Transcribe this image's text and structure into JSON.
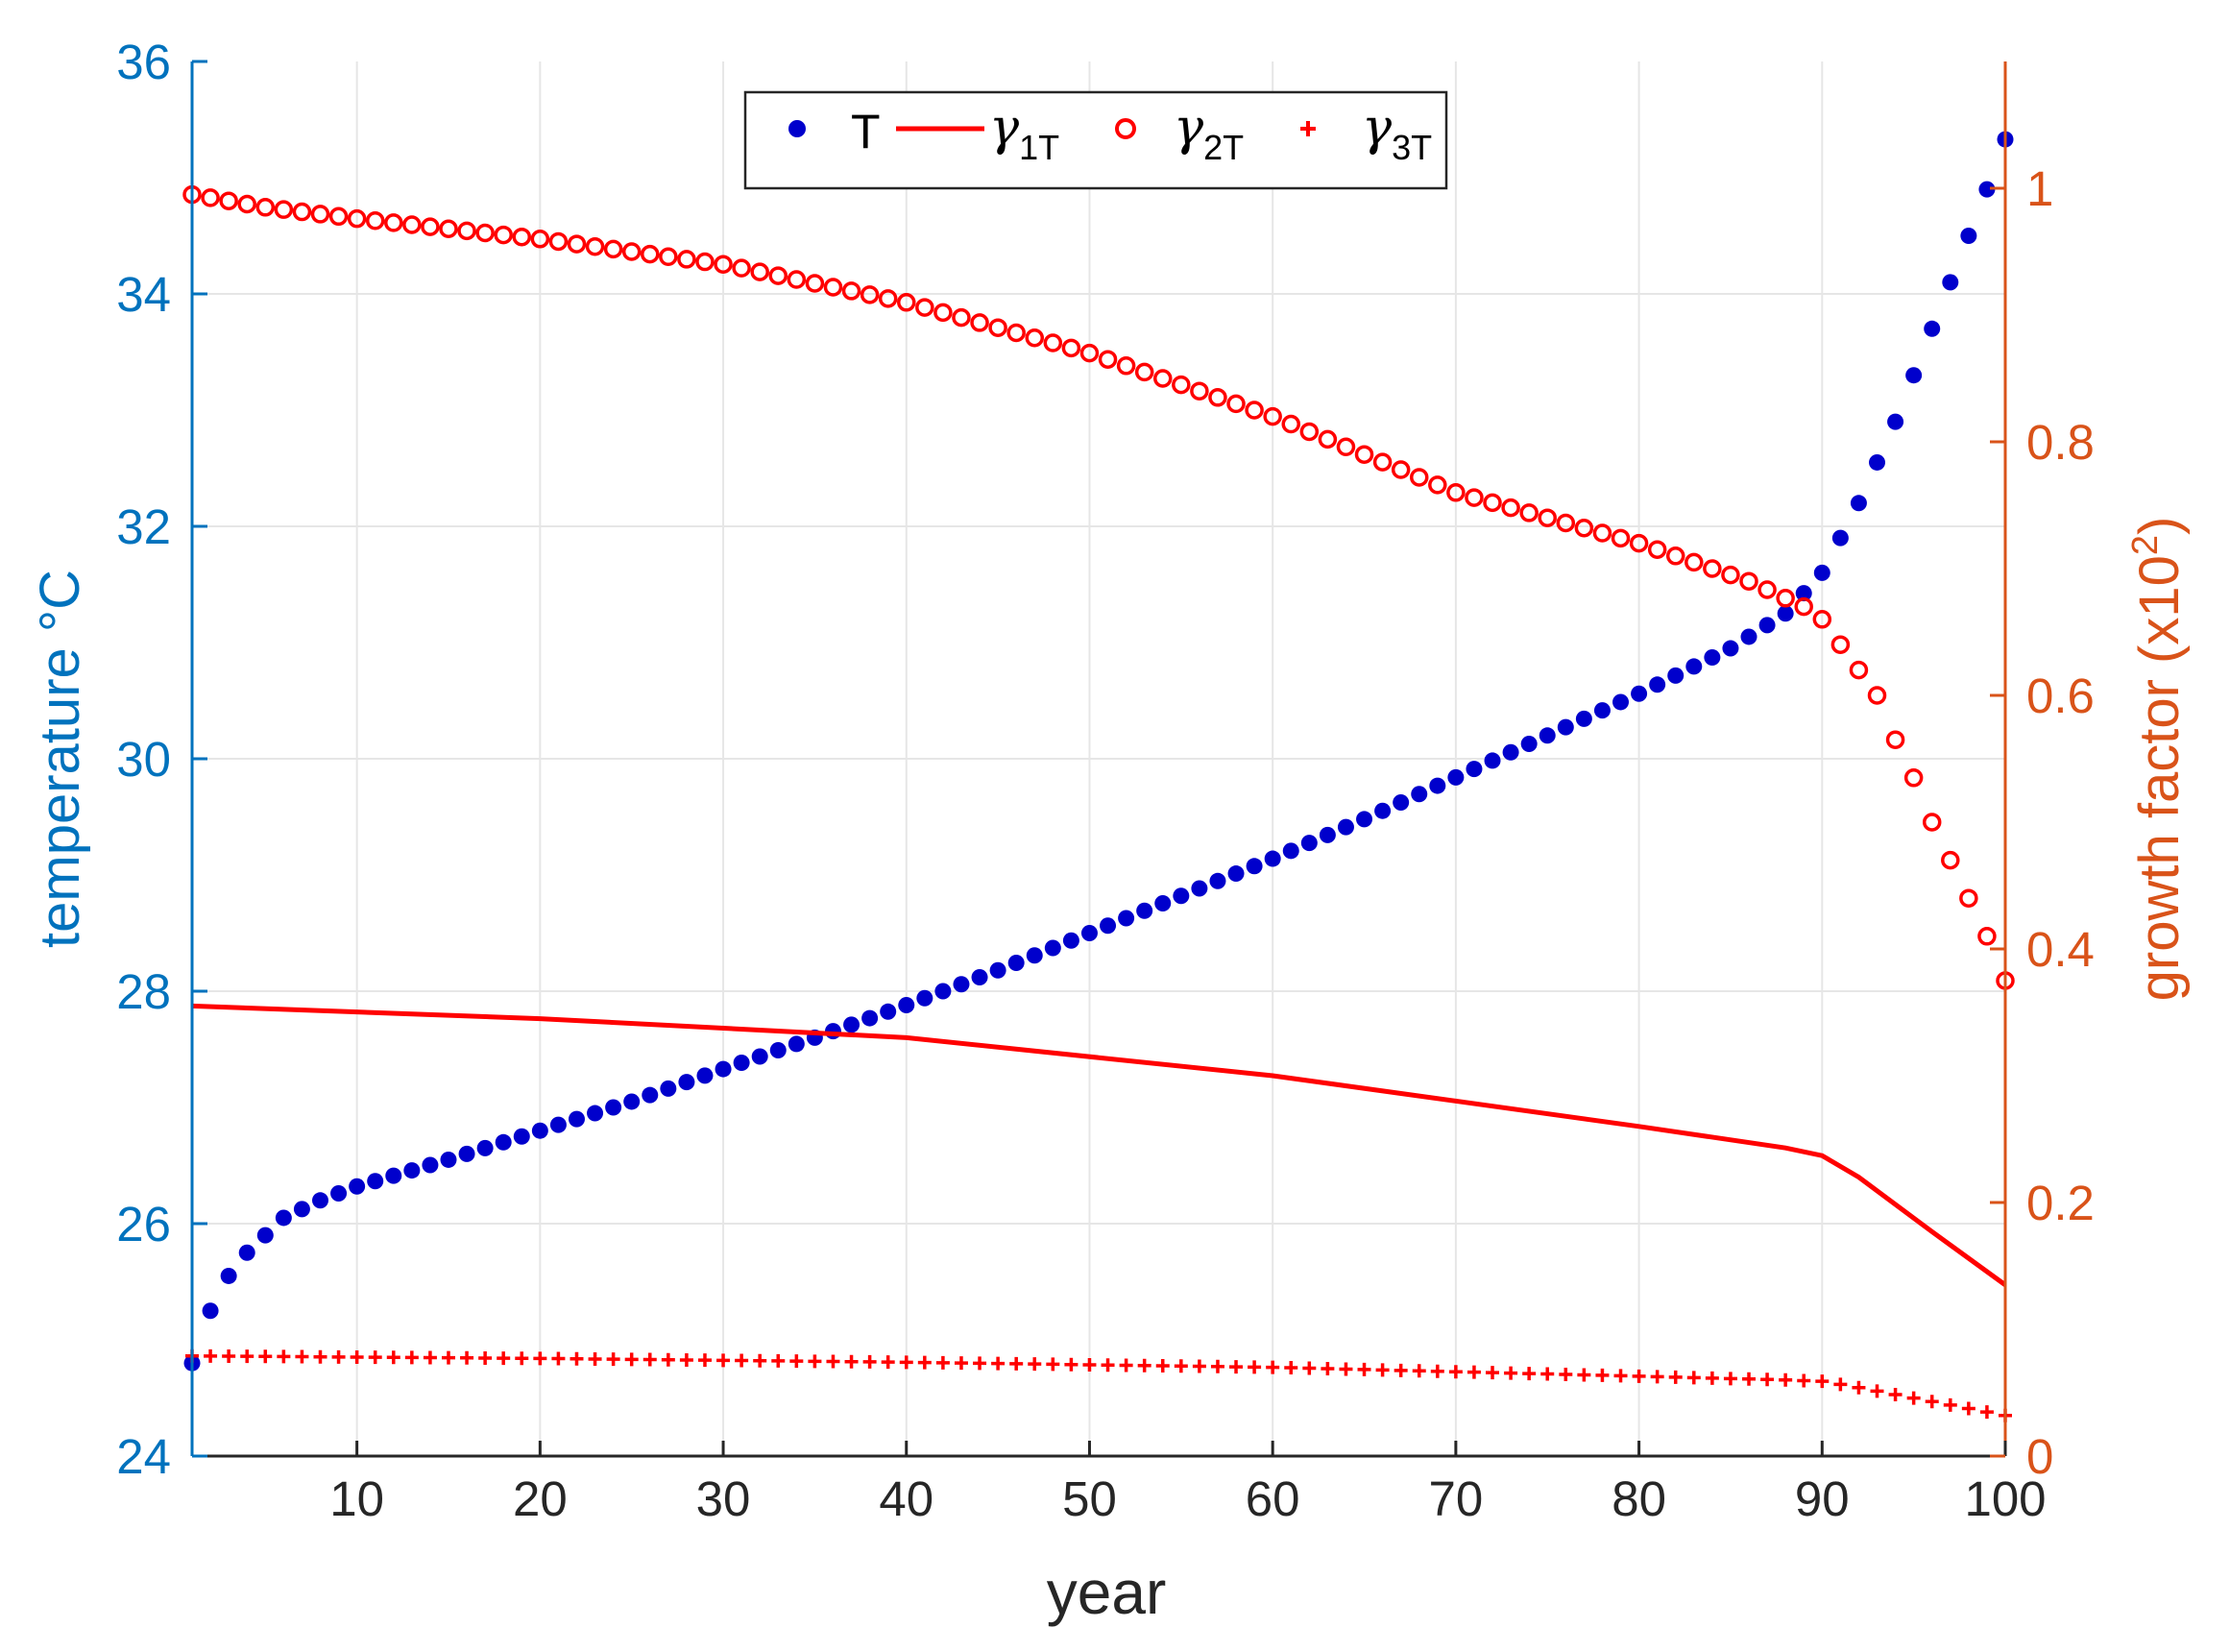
{
  "chart_data": {
    "type": "scatter",
    "xlabel": "year",
    "ylabel_left": "temperature °C",
    "ylabel_right_prefix": "growth factor (x10",
    "ylabel_right_sup": "2",
    "ylabel_right_suffix": ")",
    "xlim": [
      1,
      100
    ],
    "ylim_left": [
      24,
      36
    ],
    "ylim_right": [
      0,
      1.1
    ],
    "x_ticks": [
      "10",
      "20",
      "30",
      "40",
      "50",
      "60",
      "70",
      "80",
      "90",
      "100"
    ],
    "y_left_ticks": [
      "24",
      "26",
      "28",
      "30",
      "32",
      "34",
      "36"
    ],
    "y_right_ticks": [
      "0",
      "0.2",
      "0.4",
      "0.6",
      "0.8",
      "1"
    ],
    "grid": true,
    "legend_position": "top-center",
    "legend": [
      {
        "symbol": "T",
        "subscript": ""
      },
      {
        "symbol": "γ",
        "subscript": "1T"
      },
      {
        "symbol": "γ",
        "subscript": "2T"
      },
      {
        "symbol": "γ",
        "subscript": "3T"
      }
    ],
    "colors": {
      "T": "#0000CC",
      "gamma": "#FF0000",
      "left_axis": "#0072BD",
      "right_axis": "#D95319",
      "grid": "#E6E6E6"
    },
    "series": [
      {
        "key": "T",
        "axis": "left",
        "marker": "dot",
        "points": [
          [
            1,
            24.8
          ],
          [
            2,
            25.25
          ],
          [
            3,
            25.55
          ],
          [
            4,
            25.75
          ],
          [
            5,
            25.9
          ],
          [
            6,
            26.05
          ],
          [
            8,
            26.2
          ],
          [
            10,
            26.32
          ],
          [
            15,
            26.55
          ],
          [
            20,
            26.8
          ],
          [
            25,
            27.05
          ],
          [
            30,
            27.33
          ],
          [
            35,
            27.6
          ],
          [
            40,
            27.88
          ],
          [
            45,
            28.18
          ],
          [
            50,
            28.5
          ],
          [
            55,
            28.82
          ],
          [
            60,
            29.14
          ],
          [
            65,
            29.48
          ],
          [
            70,
            29.84
          ],
          [
            75,
            30.2
          ],
          [
            80,
            30.56
          ],
          [
            85,
            30.95
          ],
          [
            88,
            31.25
          ],
          [
            90,
            31.6
          ],
          [
            91,
            31.9
          ],
          [
            92,
            32.2
          ],
          [
            93,
            32.55
          ],
          [
            94,
            32.9
          ],
          [
            95,
            33.3
          ],
          [
            96,
            33.7
          ],
          [
            97,
            34.1
          ],
          [
            98,
            34.5
          ],
          [
            99,
            34.9
          ],
          [
            100,
            35.33
          ]
        ]
      },
      {
        "key": "gamma1T",
        "axis": "right",
        "marker": "line",
        "points": [
          [
            1,
            0.355
          ],
          [
            20,
            0.345
          ],
          [
            40,
            0.33
          ],
          [
            60,
            0.3
          ],
          [
            80,
            0.26
          ],
          [
            88,
            0.243
          ],
          [
            90,
            0.237
          ],
          [
            92,
            0.22
          ],
          [
            96,
            0.177
          ],
          [
            100,
            0.135
          ]
        ]
      },
      {
        "key": "gamma2T",
        "axis": "right",
        "marker": "circle",
        "points": [
          [
            1,
            0.995
          ],
          [
            3,
            0.99
          ],
          [
            5,
            0.985
          ],
          [
            10,
            0.976
          ],
          [
            20,
            0.96
          ],
          [
            30,
            0.94
          ],
          [
            40,
            0.91
          ],
          [
            50,
            0.87
          ],
          [
            60,
            0.82
          ],
          [
            70,
            0.76
          ],
          [
            80,
            0.72
          ],
          [
            86,
            0.69
          ],
          [
            89,
            0.67
          ],
          [
            90,
            0.66
          ],
          [
            91,
            0.64
          ],
          [
            92,
            0.62
          ],
          [
            93,
            0.6
          ],
          [
            94,
            0.565
          ],
          [
            95,
            0.535
          ],
          [
            96,
            0.5
          ],
          [
            97,
            0.47
          ],
          [
            98,
            0.44
          ],
          [
            99,
            0.41
          ],
          [
            100,
            0.375
          ]
        ]
      },
      {
        "key": "gamma3T",
        "axis": "right",
        "marker": "plus",
        "points": [
          [
            1,
            0.079
          ],
          [
            20,
            0.077
          ],
          [
            40,
            0.074
          ],
          [
            60,
            0.07
          ],
          [
            80,
            0.063
          ],
          [
            88,
            0.06
          ],
          [
            90,
            0.059
          ],
          [
            92,
            0.054
          ],
          [
            96,
            0.043
          ],
          [
            100,
            0.032
          ]
        ]
      }
    ]
  }
}
